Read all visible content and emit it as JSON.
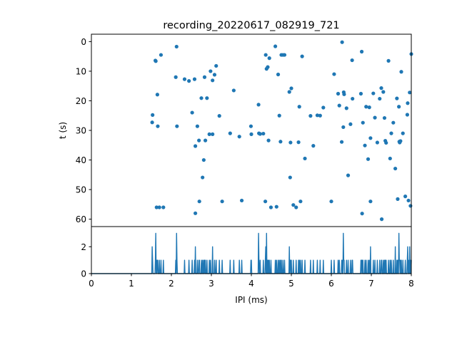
{
  "chart_data": [
    {
      "type": "scatter",
      "title": "recording_20220617_082919_721",
      "ylabel": "t (s)",
      "xlim": [
        0,
        8
      ],
      "ylim": [
        62.5,
        -2.5
      ],
      "y_inverted": true,
      "yticks": [
        0,
        10,
        20,
        30,
        40,
        50,
        60
      ],
      "yticklabels": [
        "0",
        "10",
        "20",
        "30",
        "40",
        "50",
        "60"
      ],
      "color": "#1f77b4",
      "points": [
        [
          1.52,
          27.3
        ],
        [
          1.53,
          24.8
        ],
        [
          1.6,
          6.4
        ],
        [
          1.61,
          6.6
        ],
        [
          1.63,
          56.0
        ],
        [
          1.65,
          17.9
        ],
        [
          1.66,
          28.6
        ],
        [
          1.7,
          56.0
        ],
        [
          1.74,
          4.5
        ],
        [
          1.8,
          56.0
        ],
        [
          2.11,
          12.0
        ],
        [
          2.13,
          1.7
        ],
        [
          2.14,
          28.6
        ],
        [
          2.33,
          12.7
        ],
        [
          2.44,
          13.3
        ],
        [
          2.52,
          24.0
        ],
        [
          2.58,
          12.7
        ],
        [
          2.6,
          35.3
        ],
        [
          2.65,
          28.6
        ],
        [
          2.69,
          33.4
        ],
        [
          2.7,
          54.0
        ],
        [
          2.75,
          19.1
        ],
        [
          2.78,
          45.9
        ],
        [
          2.81,
          40.0
        ],
        [
          2.83,
          12.0
        ],
        [
          2.85,
          33.4
        ],
        [
          2.89,
          19.1
        ],
        [
          2.95,
          31.3
        ],
        [
          2.98,
          10.0
        ],
        [
          3.03,
          13.1
        ],
        [
          3.03,
          31.3
        ],
        [
          3.08,
          11.2
        ],
        [
          3.12,
          8.2
        ],
        [
          3.2,
          25.1
        ],
        [
          3.27,
          54.0
        ],
        [
          3.47,
          31.0
        ],
        [
          3.56,
          16.5
        ],
        [
          3.7,
          32.1
        ],
        [
          3.76,
          53.7
        ],
        [
          3.99,
          28.6
        ],
        [
          4.0,
          31.3
        ],
        [
          4.18,
          21.3
        ],
        [
          4.19,
          31.0
        ],
        [
          4.22,
          31.2
        ],
        [
          4.3,
          31.1
        ],
        [
          4.35,
          54.0
        ],
        [
          4.36,
          4.5
        ],
        [
          4.38,
          9.2
        ],
        [
          4.41,
          8.6
        ],
        [
          4.43,
          33.4
        ],
        [
          4.45,
          5.6
        ],
        [
          4.49,
          56.0
        ],
        [
          4.6,
          1.6
        ],
        [
          4.63,
          55.8
        ],
        [
          4.67,
          11.1
        ],
        [
          4.7,
          25.0
        ],
        [
          4.73,
          33.8
        ],
        [
          4.75,
          4.5
        ],
        [
          4.79,
          4.5
        ],
        [
          4.83,
          4.5
        ],
        [
          4.95,
          17.0
        ],
        [
          4.97,
          45.9
        ],
        [
          4.98,
          34.1
        ],
        [
          5.0,
          15.8
        ],
        [
          5.05,
          55.2
        ],
        [
          5.12,
          56.0
        ],
        [
          5.18,
          34.0
        ],
        [
          5.2,
          22.0
        ],
        [
          5.23,
          54.0
        ],
        [
          5.27,
          5.0
        ],
        [
          5.34,
          39.5
        ],
        [
          5.48,
          25.1
        ],
        [
          5.55,
          35.2
        ],
        [
          5.65,
          24.9
        ],
        [
          5.72,
          25.0
        ],
        [
          5.8,
          22.3
        ],
        [
          6.0,
          54.0
        ],
        [
          6.07,
          11.0
        ],
        [
          6.17,
          17.6
        ],
        [
          6.2,
          21.6
        ],
        [
          6.26,
          33.9
        ],
        [
          6.27,
          0.2
        ],
        [
          6.3,
          28.9
        ],
        [
          6.31,
          17.1
        ],
        [
          6.32,
          17.8
        ],
        [
          6.38,
          22.5
        ],
        [
          6.42,
          45.2
        ],
        [
          6.48,
          27.9
        ],
        [
          6.52,
          6.3
        ],
        [
          6.53,
          19.3
        ],
        [
          6.74,
          17.6
        ],
        [
          6.76,
          3.4
        ],
        [
          6.77,
          58.1
        ],
        [
          6.79,
          27.4
        ],
        [
          6.84,
          35.1
        ],
        [
          6.87,
          22.0
        ],
        [
          6.92,
          39.7
        ],
        [
          6.95,
          22.2
        ],
        [
          6.98,
          32.6
        ],
        [
          6.98,
          54.0
        ],
        [
          7.05,
          17.5
        ],
        [
          7.09,
          25.7
        ],
        [
          7.15,
          34.1
        ],
        [
          7.21,
          19.3
        ],
        [
          7.25,
          15.7
        ],
        [
          7.26,
          60.0
        ],
        [
          7.3,
          17.0
        ],
        [
          7.33,
          25.8
        ],
        [
          7.35,
          33.5
        ],
        [
          7.37,
          34.2
        ],
        [
          7.43,
          6.5
        ],
        [
          7.47,
          39.5
        ],
        [
          7.5,
          31.0
        ],
        [
          7.55,
          27.4
        ],
        [
          7.6,
          42.9
        ],
        [
          7.64,
          19.2
        ],
        [
          7.66,
          53.2
        ],
        [
          7.69,
          22.0
        ],
        [
          7.7,
          33.8
        ],
        [
          7.71,
          34.1
        ],
        [
          7.73,
          33.6
        ],
        [
          7.75,
          10.2
        ],
        [
          7.79,
          31.0
        ],
        [
          7.85,
          52.3
        ],
        [
          7.9,
          24.7
        ],
        [
          7.91,
          20.8
        ],
        [
          7.93,
          53.7
        ],
        [
          7.96,
          17.2
        ],
        [
          7.98,
          55.5
        ],
        [
          8.0,
          4.2
        ],
        [
          2.6,
          58.0
        ]
      ]
    },
    {
      "type": "line",
      "xlabel": "IPI (ms)",
      "xlim": [
        0,
        8
      ],
      "ylim": [
        0,
        3.5
      ],
      "xticks": [
        0,
        1,
        2,
        3,
        4,
        5,
        6,
        7,
        8
      ],
      "xticklabels": [
        "0",
        "1",
        "2",
        "3",
        "4",
        "5",
        "6",
        "7",
        "8"
      ],
      "yticks": [
        0,
        2
      ],
      "yticklabels": [
        "0",
        "2"
      ],
      "color": "#1f77b4",
      "bin_width": 0.01,
      "nonzero_counts": [
        [
          1.52,
          2
        ],
        [
          1.53,
          1
        ],
        [
          1.6,
          1
        ],
        [
          1.61,
          3
        ],
        [
          1.63,
          1
        ],
        [
          1.65,
          1
        ],
        [
          1.66,
          1
        ],
        [
          1.7,
          1
        ],
        [
          1.74,
          1
        ],
        [
          1.8,
          1
        ],
        [
          2.11,
          1
        ],
        [
          2.13,
          3
        ],
        [
          2.14,
          1
        ],
        [
          2.33,
          1
        ],
        [
          2.44,
          1
        ],
        [
          2.52,
          1
        ],
        [
          2.58,
          1
        ],
        [
          2.6,
          2
        ],
        [
          2.65,
          1
        ],
        [
          2.69,
          1
        ],
        [
          2.7,
          1
        ],
        [
          2.75,
          1
        ],
        [
          2.78,
          1
        ],
        [
          2.81,
          1
        ],
        [
          2.83,
          1
        ],
        [
          2.85,
          1
        ],
        [
          2.89,
          1
        ],
        [
          2.95,
          1
        ],
        [
          2.98,
          1
        ],
        [
          3.03,
          2
        ],
        [
          3.08,
          1
        ],
        [
          3.12,
          1
        ],
        [
          3.2,
          1
        ],
        [
          3.27,
          1
        ],
        [
          3.47,
          1
        ],
        [
          3.56,
          1
        ],
        [
          3.7,
          1
        ],
        [
          3.76,
          1
        ],
        [
          3.99,
          1
        ],
        [
          4.0,
          1
        ],
        [
          4.18,
          3
        ],
        [
          4.19,
          1
        ],
        [
          4.22,
          1
        ],
        [
          4.3,
          1
        ],
        [
          4.35,
          1
        ],
        [
          4.36,
          2
        ],
        [
          4.38,
          3
        ],
        [
          4.41,
          1
        ],
        [
          4.43,
          1
        ],
        [
          4.45,
          1
        ],
        [
          4.49,
          1
        ],
        [
          4.6,
          1
        ],
        [
          4.63,
          1
        ],
        [
          4.67,
          1
        ],
        [
          4.7,
          1
        ],
        [
          4.73,
          1
        ],
        [
          4.75,
          1
        ],
        [
          4.79,
          1
        ],
        [
          4.83,
          1
        ],
        [
          4.95,
          2
        ],
        [
          4.97,
          1
        ],
        [
          4.98,
          1
        ],
        [
          5.0,
          1
        ],
        [
          5.05,
          1
        ],
        [
          5.12,
          1
        ],
        [
          5.18,
          1
        ],
        [
          5.2,
          1
        ],
        [
          5.23,
          1
        ],
        [
          5.27,
          1
        ],
        [
          5.34,
          1
        ],
        [
          5.48,
          1
        ],
        [
          5.55,
          1
        ],
        [
          5.65,
          1
        ],
        [
          5.72,
          1
        ],
        [
          5.8,
          1
        ],
        [
          6.0,
          1
        ],
        [
          6.07,
          1
        ],
        [
          6.17,
          1
        ],
        [
          6.2,
          1
        ],
        [
          6.26,
          1
        ],
        [
          6.27,
          1
        ],
        [
          6.3,
          3
        ],
        [
          6.31,
          1
        ],
        [
          6.32,
          1
        ],
        [
          6.38,
          1
        ],
        [
          6.42,
          1
        ],
        [
          6.48,
          1
        ],
        [
          6.52,
          1
        ],
        [
          6.53,
          1
        ],
        [
          6.74,
          1
        ],
        [
          6.76,
          1
        ],
        [
          6.77,
          1
        ],
        [
          6.79,
          1
        ],
        [
          6.84,
          1
        ],
        [
          6.87,
          1
        ],
        [
          6.92,
          1
        ],
        [
          6.95,
          1
        ],
        [
          6.98,
          2
        ],
        [
          7.05,
          1
        ],
        [
          7.09,
          1
        ],
        [
          7.15,
          1
        ],
        [
          7.21,
          1
        ],
        [
          7.25,
          1
        ],
        [
          7.26,
          1
        ],
        [
          7.3,
          1
        ],
        [
          7.33,
          1
        ],
        [
          7.35,
          1
        ],
        [
          7.37,
          1
        ],
        [
          7.43,
          1
        ],
        [
          7.47,
          1
        ],
        [
          7.5,
          1
        ],
        [
          7.55,
          1
        ],
        [
          7.6,
          2
        ],
        [
          7.64,
          1
        ],
        [
          7.66,
          1
        ],
        [
          7.69,
          3
        ],
        [
          7.7,
          1
        ],
        [
          7.71,
          1
        ],
        [
          7.73,
          1
        ],
        [
          7.75,
          1
        ],
        [
          7.79,
          1
        ],
        [
          7.85,
          1
        ],
        [
          7.9,
          1
        ],
        [
          7.91,
          2
        ],
        [
          7.93,
          1
        ],
        [
          7.96,
          2
        ],
        [
          7.98,
          1
        ],
        [
          8.0,
          1
        ]
      ]
    }
  ]
}
